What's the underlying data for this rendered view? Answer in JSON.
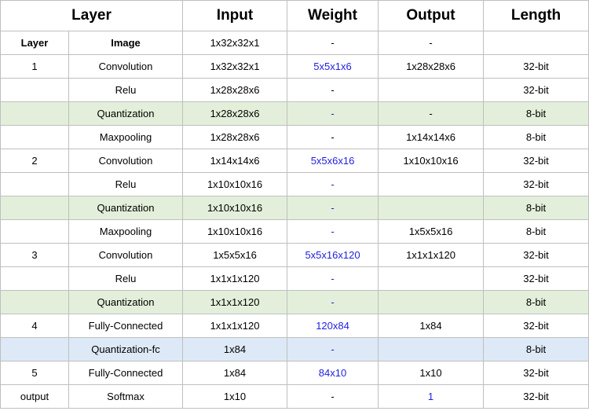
{
  "colors": {
    "green_row": "#e3efda",
    "blue_row": "#dde9f6",
    "weight_text": "#1f1fdf",
    "grid": "#bfbfbf"
  },
  "headers": [
    "Layer",
    "Input",
    "Weight",
    "Output",
    "Length"
  ],
  "subheader": [
    "Layer",
    "Image",
    "1x32x32x1",
    "-",
    "-",
    ""
  ],
  "rows": [
    {
      "layer": "1",
      "op": "Convolution",
      "input": "1x32x32x1",
      "weight": "5x5x1x6",
      "output": "1x28x28x6",
      "length": "32-bit",
      "hl": "",
      "wb": true,
      "ob": false
    },
    {
      "layer": "",
      "op": "Relu",
      "input": "1x28x28x6",
      "weight": "-",
      "output": "",
      "length": "32-bit",
      "hl": "",
      "wb": false,
      "ob": false
    },
    {
      "layer": "",
      "op": "Quantization",
      "input": "1x28x28x6",
      "weight": "-",
      "output": "-",
      "length": "8-bit",
      "hl": "green",
      "wb": true,
      "ob": false
    },
    {
      "layer": "",
      "op": "Maxpooling",
      "input": "1x28x28x6",
      "weight": "-",
      "output": "1x14x14x6",
      "length": "8-bit",
      "hl": "",
      "wb": false,
      "ob": false
    },
    {
      "layer": "2",
      "op": "Convolution",
      "input": "1x14x14x6",
      "weight": "5x5x6x16",
      "output": "1x10x10x16",
      "length": "32-bit",
      "hl": "",
      "wb": true,
      "ob": false
    },
    {
      "layer": "",
      "op": "Relu",
      "input": "1x10x10x16",
      "weight": "-",
      "output": "",
      "length": "32-bit",
      "hl": "",
      "wb": true,
      "ob": false
    },
    {
      "layer": "",
      "op": "Quantization",
      "input": "1x10x10x16",
      "weight": "-",
      "output": "",
      "length": "8-bit",
      "hl": "green",
      "wb": true,
      "ob": false
    },
    {
      "layer": "",
      "op": "Maxpooling",
      "input": "1x10x10x16",
      "weight": "-",
      "output": "1x5x5x16",
      "length": "8-bit",
      "hl": "",
      "wb": true,
      "ob": false
    },
    {
      "layer": "3",
      "op": "Convolution",
      "input": "1x5x5x16",
      "weight": "5x5x16x120",
      "output": "1x1x1x120",
      "length": "32-bit",
      "hl": "",
      "wb": true,
      "ob": false
    },
    {
      "layer": "",
      "op": "Relu",
      "input": "1x1x1x120",
      "weight": "-",
      "output": "",
      "length": "32-bit",
      "hl": "",
      "wb": true,
      "ob": false
    },
    {
      "layer": "",
      "op": "Quantization",
      "input": "1x1x1x120",
      "weight": "-",
      "output": "",
      "length": "8-bit",
      "hl": "green",
      "wb": true,
      "ob": false
    },
    {
      "layer": "4",
      "op": "Fully-Connected",
      "input": "1x1x1x120",
      "weight": "120x84",
      "output": "1x84",
      "length": "32-bit",
      "hl": "",
      "wb": true,
      "ob": false
    },
    {
      "layer": "",
      "op": "Quantization-fc",
      "input": "1x84",
      "weight": "-",
      "output": "",
      "length": "8-bit",
      "hl": "lightblue",
      "wb": true,
      "ob": false
    },
    {
      "layer": "5",
      "op": "Fully-Connected",
      "input": "1x84",
      "weight": "84x10",
      "output": "1x10",
      "length": "32-bit",
      "hl": "",
      "wb": true,
      "ob": false
    },
    {
      "layer": "output",
      "op": "Softmax",
      "input": "1x10",
      "weight": "-",
      "output": "1",
      "length": "32-bit",
      "hl": "",
      "wb": false,
      "ob": true
    }
  ]
}
